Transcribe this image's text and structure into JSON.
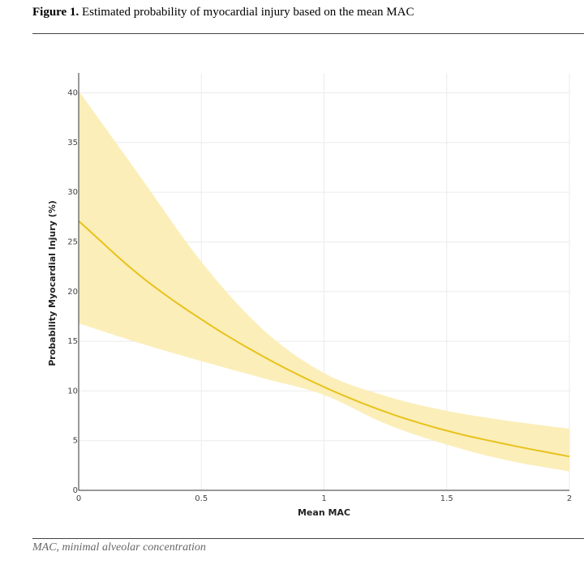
{
  "caption": {
    "label": "Figure 1.",
    "text": " Estimated probability of myocardial injury based on the mean MAC"
  },
  "footnote": "MAC, minimal alveolar concentration",
  "colors": {
    "line": "#e8c21a",
    "band": "#fbeeb9",
    "grid": "#ebebeb",
    "axis": "#333333"
  },
  "chart_data": {
    "type": "line",
    "xlabel": "Mean MAC",
    "ylabel": "Probability Myocardial Injury (%)",
    "xlim": [
      0,
      2
    ],
    "ylim": [
      0,
      42
    ],
    "xticks": [
      0,
      0.5,
      1,
      1.5,
      2
    ],
    "xtick_labels": [
      "0",
      "0.5",
      "1",
      "1.5",
      "2"
    ],
    "yticks": [
      0,
      5,
      10,
      15,
      20,
      25,
      30,
      35,
      40
    ],
    "ytick_labels": [
      "0",
      "5",
      "10",
      "15",
      "20",
      "25",
      "30",
      "35",
      "40"
    ],
    "grid": true,
    "series": [
      {
        "x": [
          0,
          0.25,
          0.5,
          0.75,
          1.0,
          1.25,
          1.5,
          1.75,
          2.0
        ],
        "y": [
          27.1,
          21.6,
          17.2,
          13.5,
          10.4,
          7.9,
          6.0,
          4.6,
          3.4
        ],
        "lower": [
          16.8,
          14.8,
          13.0,
          11.3,
          9.6,
          6.7,
          4.6,
          3.0,
          1.9
        ],
        "upper": [
          40.2,
          31.6,
          23.0,
          16.2,
          11.8,
          9.5,
          8.0,
          7.0,
          6.2
        ]
      }
    ]
  }
}
